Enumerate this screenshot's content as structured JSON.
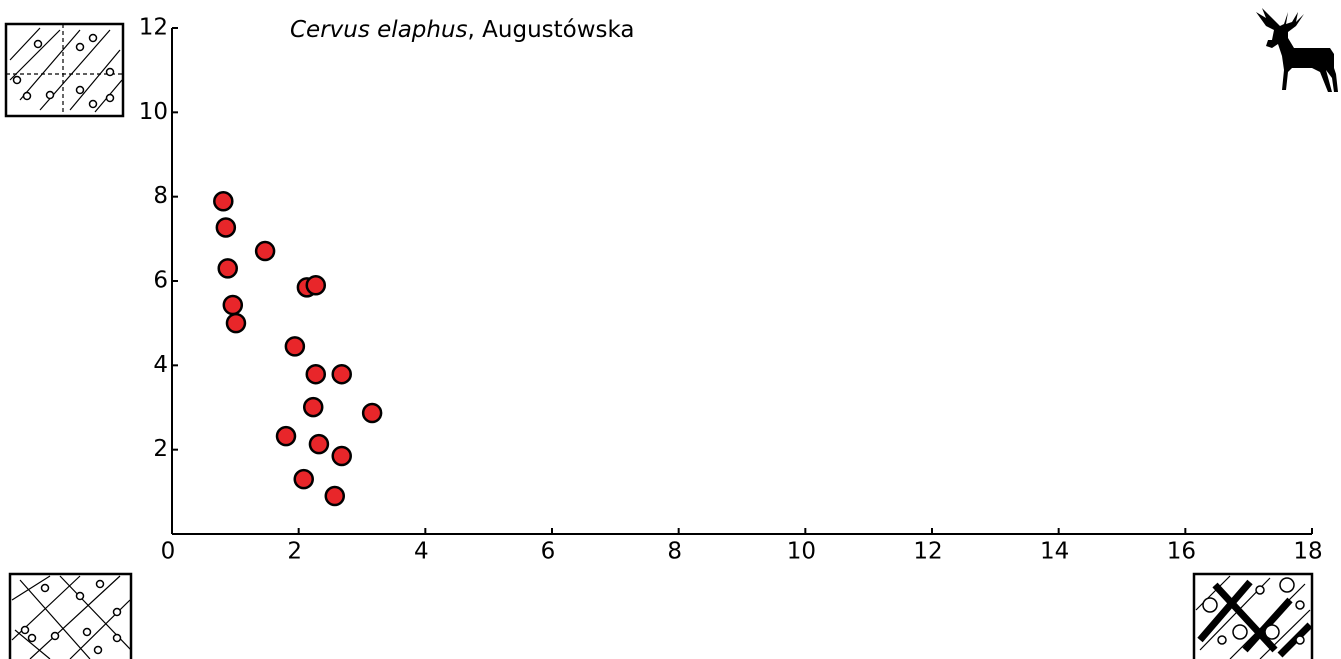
{
  "chart_data": {
    "type": "scatter",
    "title_parts": [
      "Cervus elaphus",
      ", Augustówska"
    ],
    "series": [
      {
        "name": "Cervus elaphus",
        "color": "#e8262a",
        "x": [
          0.81,
          0.85,
          0.88,
          1.47,
          2.13,
          2.27,
          0.96,
          1.01,
          1.94,
          2.27,
          2.68,
          2.23,
          3.16,
          1.8,
          2.32,
          2.68,
          2.08,
          2.57
        ],
        "values": [
          7.89,
          7.27,
          6.3,
          6.71,
          5.85,
          5.9,
          5.43,
          5.0,
          4.45,
          3.79,
          3.79,
          3.01,
          2.87,
          2.32,
          2.13,
          1.85,
          1.3,
          0.9
        ]
      }
    ],
    "xlim": [
      0,
      18
    ],
    "xticks": [
      0,
      2,
      4,
      6,
      8,
      10,
      12,
      14,
      16,
      18
    ],
    "ylim": [
      0,
      12
    ],
    "yticks": [
      2,
      4,
      6,
      8,
      10,
      12
    ],
    "grid": false
  }
}
